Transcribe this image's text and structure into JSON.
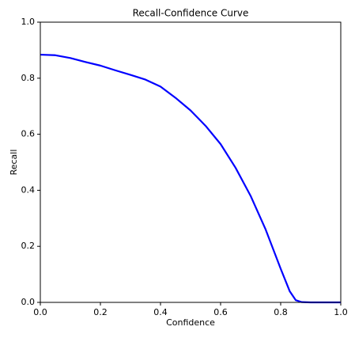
{
  "chart_data": {
    "type": "line",
    "title": "Recall-Confidence Curve",
    "x_label": "Confidence",
    "y_label": "Recall",
    "x": [
      0,
      0.05,
      0.1,
      0.15,
      0.2,
      0.25,
      0.3,
      0.35,
      0.4,
      0.45,
      0.5,
      0.55,
      0.6,
      0.65,
      0.7,
      0.75,
      0.8,
      0.83,
      0.85,
      0.87,
      0.9,
      1
    ],
    "series": [
      {
        "color": "#0000ff",
        "values": [
          0.884,
          0.882,
          0.872,
          0.858,
          0.845,
          0.828,
          0.812,
          0.795,
          0.77,
          0.73,
          0.685,
          0.63,
          0.565,
          0.48,
          0.38,
          0.26,
          0.12,
          0.04,
          0.008,
          0.001,
          0,
          0
        ]
      }
    ],
    "xlim": [
      0,
      1
    ],
    "ylim": [
      0,
      1
    ],
    "xticks": [
      {
        "value": 0,
        "label": "0.0"
      },
      0.2,
      0.4,
      0.6,
      0.8,
      {
        "value": 1,
        "label": "1.0"
      }
    ],
    "yticks": [
      {
        "value": 0,
        "label": "0.0"
      },
      0.2,
      0.4,
      0.6,
      0.8,
      {
        "value": 1,
        "label": "1.0"
      }
    ],
    "grid": false
  }
}
